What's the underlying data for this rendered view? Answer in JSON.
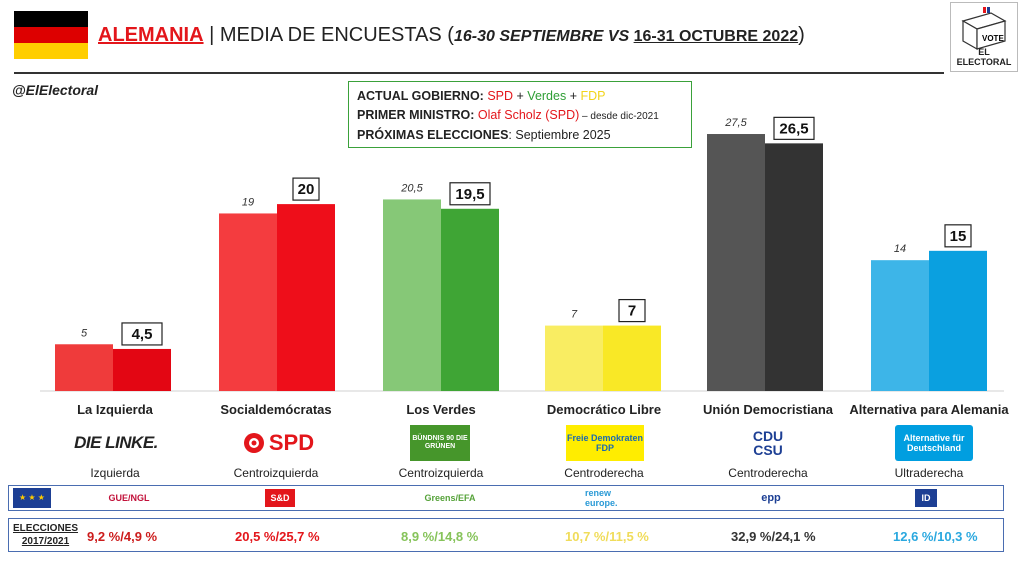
{
  "header": {
    "country": "ALEMANIA",
    "separator": " | ",
    "title_main": "MEDIA DE ENCUESTAS (",
    "dates_pre": "16-30 SEPTIEMBRE VS ",
    "dates_current": "16-31 OCTUBRE 2022",
    "close_paren": ")",
    "logo_vote": "VOTE",
    "logo_text": "EL ELECTORAL"
  },
  "handle": "@ElElectoral",
  "infobox": {
    "gov_label": "ACTUAL GOBIERNO:",
    "gov_p1": "SPD",
    "plus": " + ",
    "gov_p2": "Verdes",
    "gov_p3": "FDP",
    "pm_label": "PRIMER MINISTRO:",
    "pm_name": "Olaf Scholz (SPD)",
    "pm_since": " – desde dic-2021",
    "next_label": "PRÓXIMAS ELECCIONES",
    "next_value": ": Septiembre 2025"
  },
  "parties": [
    {
      "name": "La Izquierda",
      "logo": "DIE LINKE.",
      "ideology": "Izquierda",
      "eu_group": "GUE/NGL",
      "elections": "9,2 %/4,9 %",
      "color": "#cc1c1c"
    },
    {
      "name": "Socialdemócratas",
      "logo": "SPD",
      "ideology": "Centroizquierda",
      "eu_group": "S&D",
      "elections": "20,5 %/25,7 %",
      "color": "#e3161b"
    },
    {
      "name": "Los Verdes",
      "logo": "BÜNDNIS 90 DIE GRÜNEN",
      "ideology": "Centroizquierda",
      "eu_group": "Greens/EFA",
      "elections": "8,9 %/14,8 %",
      "color": "#86c35a"
    },
    {
      "name": "Democrático Libre",
      "logo": "Freie Demokraten FDP",
      "ideology": "Centroderecha",
      "eu_group": "renew europe.",
      "elections": "10,7 %/11,5 %",
      "color": "#f5df55"
    },
    {
      "name": "Unión Democristiana",
      "logo": "CDU CSU",
      "ideology": "Centroderecha",
      "eu_group": "epp",
      "elections": "32,9 %/24,1 %",
      "color": "#333333"
    },
    {
      "name": "Alternativa para Alemania",
      "logo": "Alternative für Deutschland",
      "ideology": "Ultraderecha",
      "eu_group": "ID",
      "elections": "12,6 %/10,3 %",
      "color": "#2aa8df"
    }
  ],
  "elections_label": [
    "ELECCIONES",
    "2017/2021"
  ],
  "chart_data": {
    "type": "bar",
    "categories": [
      "La Izquierda",
      "Socialdemócratas",
      "Los Verdes",
      "Democrático Libre",
      "Unión Democristiana",
      "Alternativa para Alemania"
    ],
    "series": [
      {
        "name": "16-30 Septiembre",
        "values": [
          5,
          19,
          20.5,
          7,
          27.5,
          14
        ],
        "labels": [
          "5",
          "19",
          "20,5",
          "7",
          "27,5",
          "14"
        ],
        "colors": [
          "#ef3b3b",
          "#f43c3f",
          "#86c877",
          "#f9ed62",
          "#555555",
          "#3db5e8"
        ]
      },
      {
        "name": "16-31 Octubre 2022",
        "values": [
          4.5,
          20,
          19.5,
          7,
          26.5,
          15
        ],
        "labels": [
          "4,5",
          "20",
          "19,5",
          "7",
          "26,5",
          "15"
        ],
        "colors": [
          "#e30613",
          "#ee0e1a",
          "#3fa535",
          "#f9e826",
          "#333333",
          "#0aa0e0"
        ]
      }
    ],
    "ylim": [
      0,
      29
    ],
    "grid": false,
    "legend": "none"
  },
  "colors": {
    "accent_red": "#e3161b",
    "box_green": "#3aa13a",
    "row_border": "#4a6db1"
  }
}
